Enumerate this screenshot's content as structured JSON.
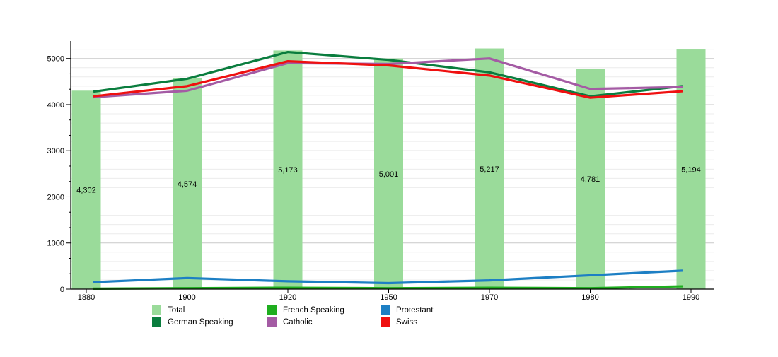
{
  "chart_data": {
    "type": "bar",
    "overlay": "line",
    "title": "",
    "xlabel": "",
    "ylabel": "",
    "categories": [
      "1880",
      "1900",
      "1920",
      "1950",
      "1970",
      "1980",
      "1990"
    ],
    "bars": {
      "name": "Total",
      "color": "#9adb9a",
      "values": [
        4302,
        4574,
        5173,
        5001,
        5217,
        4781,
        5194
      ],
      "labels": [
        "4,302",
        "4,574",
        "5,173",
        "5,001",
        "5,217",
        "4,781",
        "5,194"
      ]
    },
    "line_series": [
      {
        "name": "German Speaking",
        "color": "#0a7d3e",
        "values": [
          4280,
          4560,
          5140,
          4970,
          4700,
          4180,
          4400
        ]
      },
      {
        "name": "French Speaking",
        "color": "#1fae1f",
        "values": [
          10,
          20,
          30,
          20,
          30,
          20,
          60
        ]
      },
      {
        "name": "Catholic",
        "color": "#a45ba4",
        "values": [
          4160,
          4300,
          4900,
          4880,
          5000,
          4340,
          4380
        ]
      },
      {
        "name": "Protestant",
        "color": "#1d7fc4",
        "values": [
          150,
          240,
          170,
          130,
          190,
          300,
          400
        ]
      },
      {
        "name": "Swiss",
        "color": "#ef1010",
        "values": [
          4180,
          4400,
          4940,
          4850,
          4630,
          4150,
          4290
        ]
      }
    ],
    "yticks": [
      0,
      1000,
      2000,
      3000,
      4000,
      5000
    ],
    "ytick_labels": [
      "0",
      "1000",
      "2000",
      "3000",
      "4000",
      "5000"
    ],
    "ylim": [
      0,
      5380
    ],
    "grid": {
      "horizontal": true,
      "minor_step": 200,
      "major_step": 1000,
      "vertical": false
    },
    "legend_position": "bottom"
  },
  "legend": {
    "items": [
      {
        "label": "Total",
        "color": "#9adb9a"
      },
      {
        "label": "German Speaking",
        "color": "#0a7d3e"
      },
      {
        "label": "French Speaking",
        "color": "#1fae1f"
      },
      {
        "label": "Catholic",
        "color": "#a45ba4"
      },
      {
        "label": "Protestant",
        "color": "#1d7fc4"
      },
      {
        "label": "Swiss",
        "color": "#ef1010"
      }
    ]
  },
  "colors": {
    "axis": "#000000",
    "grid_major": "#c9c9c9",
    "grid_minor": "#ececec",
    "label_text": "#000000"
  }
}
